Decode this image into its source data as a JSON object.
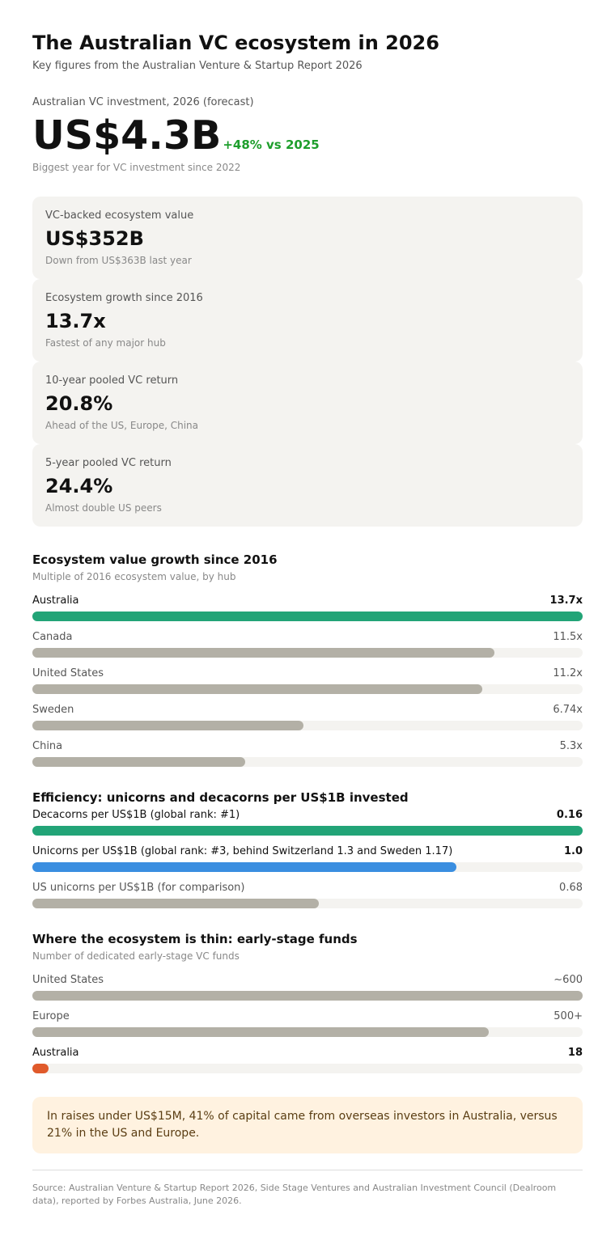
{
  "header": {
    "title": "The Australian VC ecosystem in 2026",
    "subtitle": "Key figures from the Australian Venture & Startup Report 2026"
  },
  "hero": {
    "label": "Australian VC investment, 2026 (forecast)",
    "value": "US$4.3B",
    "delta": "+48% vs 2025",
    "note": "Biggest year for VC investment since 2022"
  },
  "cards": [
    {
      "label": "VC-backed ecosystem value",
      "value": "US$352B",
      "note": "Down from US$363B last year"
    },
    {
      "label": "Ecosystem growth since 2016",
      "value": "13.7x",
      "note": "Fastest of any major hub"
    },
    {
      "label": "10-year pooled VC return",
      "value": "20.8%",
      "note": "Ahead of the US, Europe, China"
    },
    {
      "label": "5-year pooled VC return",
      "value": "24.4%",
      "note": "Almost double US peers"
    }
  ],
  "colors": {
    "highlight": "#22a477",
    "neutral": "#b3b0a6",
    "blue": "#3a8ee0",
    "orange": "#e05a2b",
    "track": "#f4f3f0"
  },
  "chart_data": [
    {
      "type": "bar",
      "title": "Ecosystem value growth since 2016",
      "subtitle": "Multiple of 2016 ecosystem value, by hub",
      "categories": [
        "Australia",
        "Canada",
        "United States",
        "Sweden",
        "China"
      ],
      "values": [
        13.7,
        11.5,
        11.2,
        6.74,
        5.3
      ],
      "value_labels": [
        "13.7x",
        "11.5x",
        "11.2x",
        "6.74x",
        "5.3x"
      ],
      "max": 13.7,
      "colors": [
        "#22a477",
        "#b3b0a6",
        "#b3b0a6",
        "#b3b0a6",
        "#b3b0a6"
      ],
      "emphasis": [
        true,
        false,
        false,
        false,
        false
      ]
    },
    {
      "type": "bar",
      "title": "Efficiency: unicorns and decacorns per US$1B invested",
      "subtitle": "",
      "categories": [
        "Decacorns per US$1B (global rank: #1)",
        "Unicorns per US$1B (global rank: #3, behind Switzerland 1.3 and Sweden 1.17)",
        "US unicorns per US$1B (for comparison)"
      ],
      "values": [
        0.16,
        1.0,
        0.68
      ],
      "value_labels": [
        "0.16",
        "1.0",
        "0.68"
      ],
      "fill_fractions": [
        1.0,
        0.77,
        0.52
      ],
      "colors": [
        "#22a477",
        "#3a8ee0",
        "#b3b0a6"
      ],
      "emphasis": [
        true,
        true,
        false
      ]
    },
    {
      "type": "bar",
      "title": "Where the ecosystem is thin: early-stage funds",
      "subtitle": "Number of dedicated early-stage VC funds",
      "categories": [
        "United States",
        "Europe",
        "Australia"
      ],
      "values": [
        600,
        500,
        18
      ],
      "value_labels": [
        "~600",
        "500+",
        "18"
      ],
      "fill_fractions": [
        1.0,
        0.83,
        0.03
      ],
      "colors": [
        "#b3b0a6",
        "#b3b0a6",
        "#e05a2b"
      ],
      "emphasis": [
        false,
        false,
        true
      ]
    }
  ],
  "callout": "In raises under US$15M, 41% of capital came from overseas investors in Australia, versus 21% in the US and Europe.",
  "source": "Source: Australian Venture & Startup Report 2026, Side Stage Ventures and Australian Investment Council (Dealroom data), reported by Forbes Australia, June 2026."
}
